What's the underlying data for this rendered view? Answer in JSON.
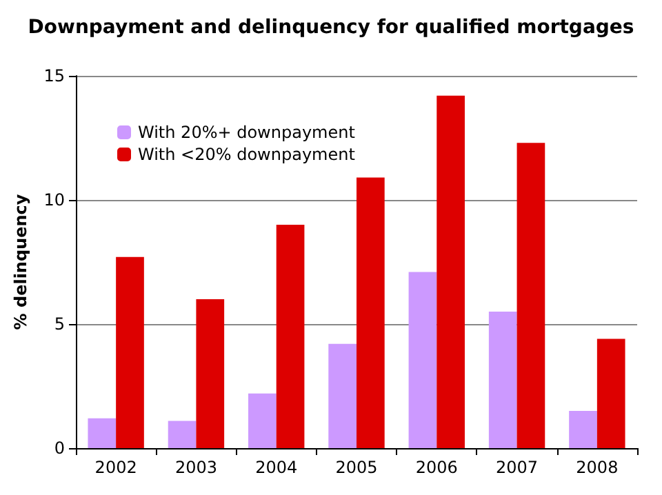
{
  "chart_data": {
    "type": "bar",
    "title": "Downpayment and delinquency for qualified mortgages",
    "ylabel": "% delinquency",
    "categories": [
      "2002",
      "2003",
      "2004",
      "2005",
      "2006",
      "2007",
      "2008"
    ],
    "series": [
      {
        "name": "With 20%+ downpayment",
        "color": "#cc99ff",
        "values": [
          1.2,
          1.1,
          2.2,
          4.2,
          7.1,
          5.5,
          1.5
        ]
      },
      {
        "name": "With <20% downpayment",
        "color": "#dd0000",
        "values": [
          7.7,
          6.0,
          9.0,
          10.9,
          14.2,
          12.3,
          4.4
        ]
      }
    ],
    "ylim": [
      0,
      15
    ],
    "yticks": [
      0,
      5,
      10,
      15
    ],
    "grid": "y",
    "legend": "top left"
  }
}
